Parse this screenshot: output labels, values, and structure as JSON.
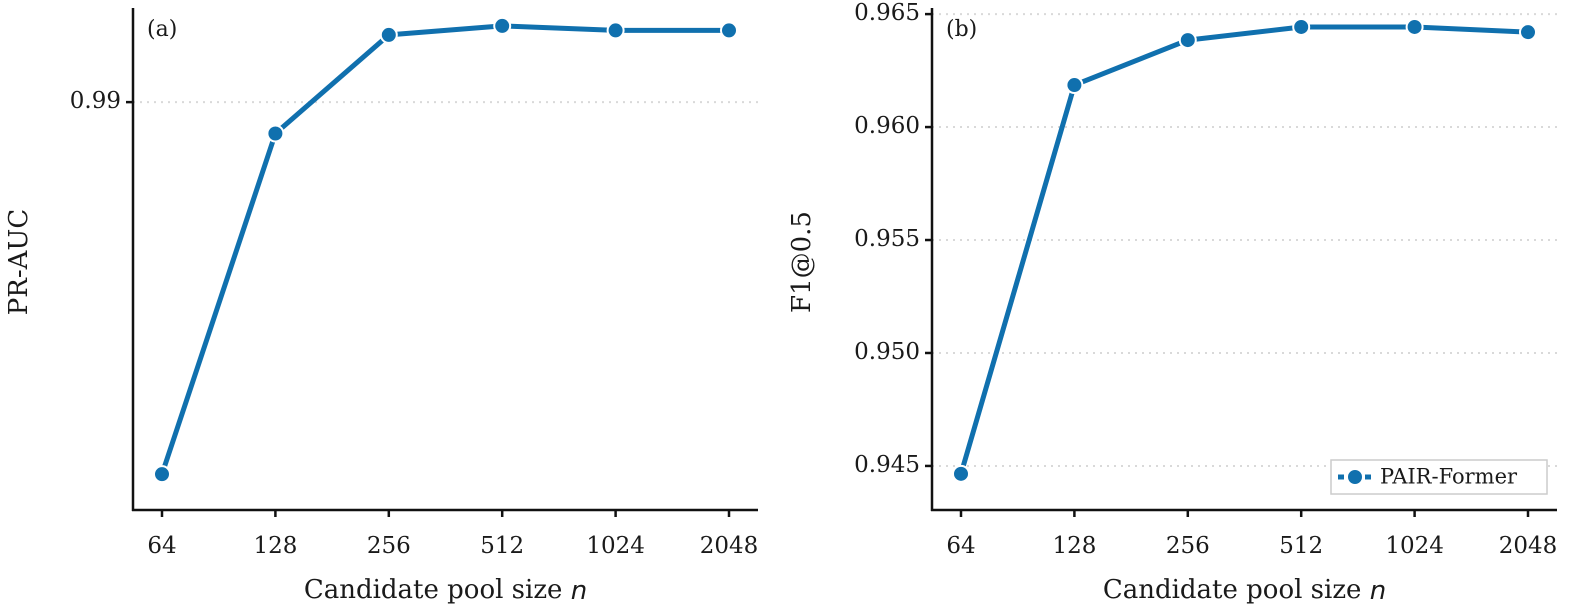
{
  "chart_data": [
    {
      "type": "line",
      "panel_label": "(a)",
      "ylabel": "PR-AUC",
      "xlabel": "Candidate pool size",
      "xlabel_var": "n",
      "categories": [
        "64",
        "128",
        "256",
        "512",
        "1024",
        "2048"
      ],
      "series": [
        {
          "color": "#1070ae",
          "values": [
            0.9817,
            0.9893,
            0.9915,
            0.9917,
            0.9916,
            0.9916
          ]
        }
      ],
      "ylim": [
        0.9809,
        0.9921
      ],
      "yticks": [
        0.99
      ],
      "grid": true
    },
    {
      "type": "line",
      "panel_label": "(b)",
      "ylabel": "F1@0.5",
      "xlabel": "Candidate pool size",
      "xlabel_var": "n",
      "categories": [
        "64",
        "128",
        "256",
        "512",
        "1024",
        "2048"
      ],
      "series": [
        {
          "name": "PAIR-Former",
          "color": "#1070ae",
          "values": [
            0.94465,
            0.96186,
            0.96385,
            0.96443,
            0.96443,
            0.9642
          ]
        }
      ],
      "ylim": [
        0.94305,
        0.96527
      ],
      "yticks": [
        {
          "value": 0.945,
          "label": "0.945"
        },
        {
          "value": 0.95,
          "label": "0.950"
        },
        {
          "value": 0.955,
          "label": "0.955"
        },
        {
          "value": 0.96,
          "label": "0.960"
        },
        {
          "value": 0.965,
          "label": "0.965"
        }
      ],
      "grid": true,
      "legend": "lower right"
    }
  ]
}
